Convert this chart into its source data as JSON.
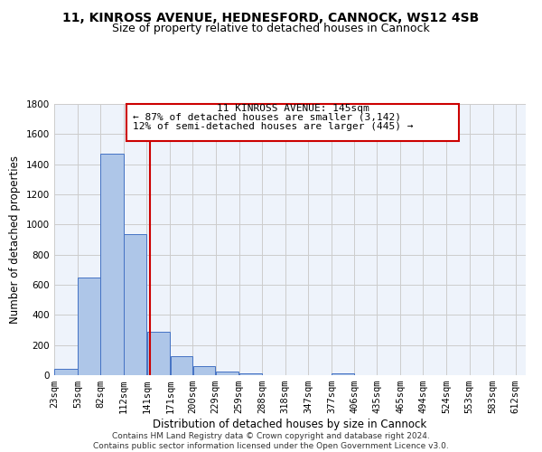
{
  "title_line1": "11, KINROSS AVENUE, HEDNESFORD, CANNOCK, WS12 4SB",
  "title_line2": "Size of property relative to detached houses in Cannock",
  "xlabel": "Distribution of detached houses by size in Cannock",
  "ylabel": "Number of detached properties",
  "bar_left_edges": [
    23,
    53,
    82,
    112,
    141,
    171,
    200,
    229,
    259,
    288,
    318,
    347,
    377,
    406,
    435,
    465,
    494,
    524,
    553,
    583
  ],
  "bar_widths": [
    30,
    29,
    30,
    29,
    30,
    29,
    29,
    30,
    29,
    30,
    29,
    30,
    29,
    29,
    30,
    29,
    30,
    29,
    30,
    29
  ],
  "bar_heights": [
    40,
    650,
    1470,
    935,
    290,
    125,
    62,
    22,
    14,
    0,
    0,
    0,
    14,
    0,
    0,
    0,
    0,
    0,
    0,
    0
  ],
  "bar_color": "#aec6e8",
  "bar_edge_color": "#4472c4",
  "tick_labels": [
    "23sqm",
    "53sqm",
    "82sqm",
    "112sqm",
    "141sqm",
    "171sqm",
    "200sqm",
    "229sqm",
    "259sqm",
    "288sqm",
    "318sqm",
    "347sqm",
    "377sqm",
    "406sqm",
    "435sqm",
    "465sqm",
    "494sqm",
    "524sqm",
    "553sqm",
    "583sqm",
    "612sqm"
  ],
  "tick_positions": [
    23,
    53,
    82,
    112,
    141,
    171,
    200,
    229,
    259,
    288,
    318,
    347,
    377,
    406,
    435,
    465,
    494,
    524,
    553,
    583,
    612
  ],
  "ylim": [
    0,
    1800
  ],
  "yticks": [
    0,
    200,
    400,
    600,
    800,
    1000,
    1200,
    1400,
    1600,
    1800
  ],
  "vline_x": 145,
  "vline_color": "#cc0000",
  "annotation_line1": "11 KINROSS AVENUE: 145sqm",
  "annotation_line2": "← 87% of detached houses are smaller (3,142)",
  "annotation_line3": "12% of semi-detached houses are larger (445) →",
  "background_color": "#ffffff",
  "grid_color": "#cccccc",
  "footer_text": "Contains HM Land Registry data © Crown copyright and database right 2024.\nContains public sector information licensed under the Open Government Licence v3.0.",
  "title_fontsize": 10,
  "subtitle_fontsize": 9,
  "axis_label_fontsize": 8.5,
  "tick_fontsize": 7.5,
  "annotation_fontsize": 8,
  "footer_fontsize": 6.5
}
